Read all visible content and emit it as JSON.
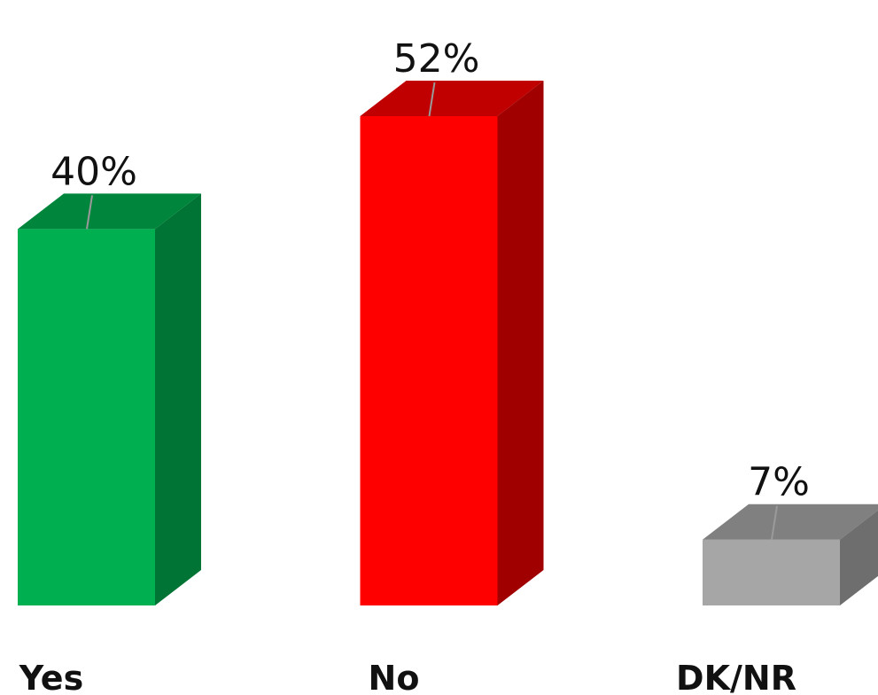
{
  "chart_data": {
    "type": "bar",
    "categories": [
      "Yes",
      "No",
      "DK/NR"
    ],
    "values": [
      40,
      52,
      7
    ],
    "data_labels": [
      "40%",
      "52%",
      "7%"
    ],
    "colors": [
      {
        "front": "#00b050",
        "top": "#00863c",
        "side": "#007434"
      },
      {
        "front": "#ff0000",
        "top": "#c00000",
        "side": "#a00000"
      },
      {
        "front": "#a6a6a6",
        "top": "#808080",
        "side": "#6e6e6e"
      }
    ],
    "title": "",
    "xlabel": "",
    "ylabel": "",
    "ylim": [
      0,
      52
    ],
    "three_d": true,
    "grid": false,
    "legend": "none"
  }
}
